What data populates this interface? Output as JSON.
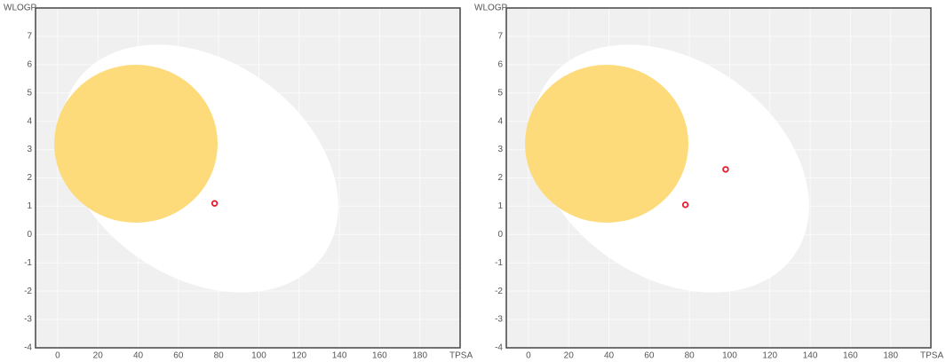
{
  "chart_data": [
    {
      "type": "scatter",
      "x_label": "TPSA",
      "y_label": "WLOGP",
      "x": [
        78
      ],
      "values": [
        1.1
      ],
      "color": "#e8192c",
      "xlim": [
        -11,
        200
      ],
      "ylim": [
        -4,
        8
      ],
      "xticks": [
        0,
        20,
        40,
        60,
        80,
        100,
        120,
        140,
        160,
        180
      ],
      "yticks": [
        -4,
        -3,
        -2,
        -1,
        0,
        1,
        2,
        3,
        4,
        5,
        6,
        7
      ],
      "grid": true
    },
    {
      "type": "scatter",
      "x_label": "TPSA",
      "y_label": "WLOGP",
      "x": [
        78,
        98
      ],
      "values": [
        1.05,
        2.3
      ],
      "color": "#e8192c",
      "xlim": [
        -11,
        200
      ],
      "ylim": [
        -4,
        8
      ],
      "xticks": [
        0,
        20,
        40,
        60,
        80,
        100,
        120,
        140,
        160,
        180
      ],
      "yticks": [
        -4,
        -3,
        -2,
        -1,
        0,
        1,
        2,
        3,
        4,
        5,
        6,
        7
      ],
      "grid": true
    }
  ]
}
